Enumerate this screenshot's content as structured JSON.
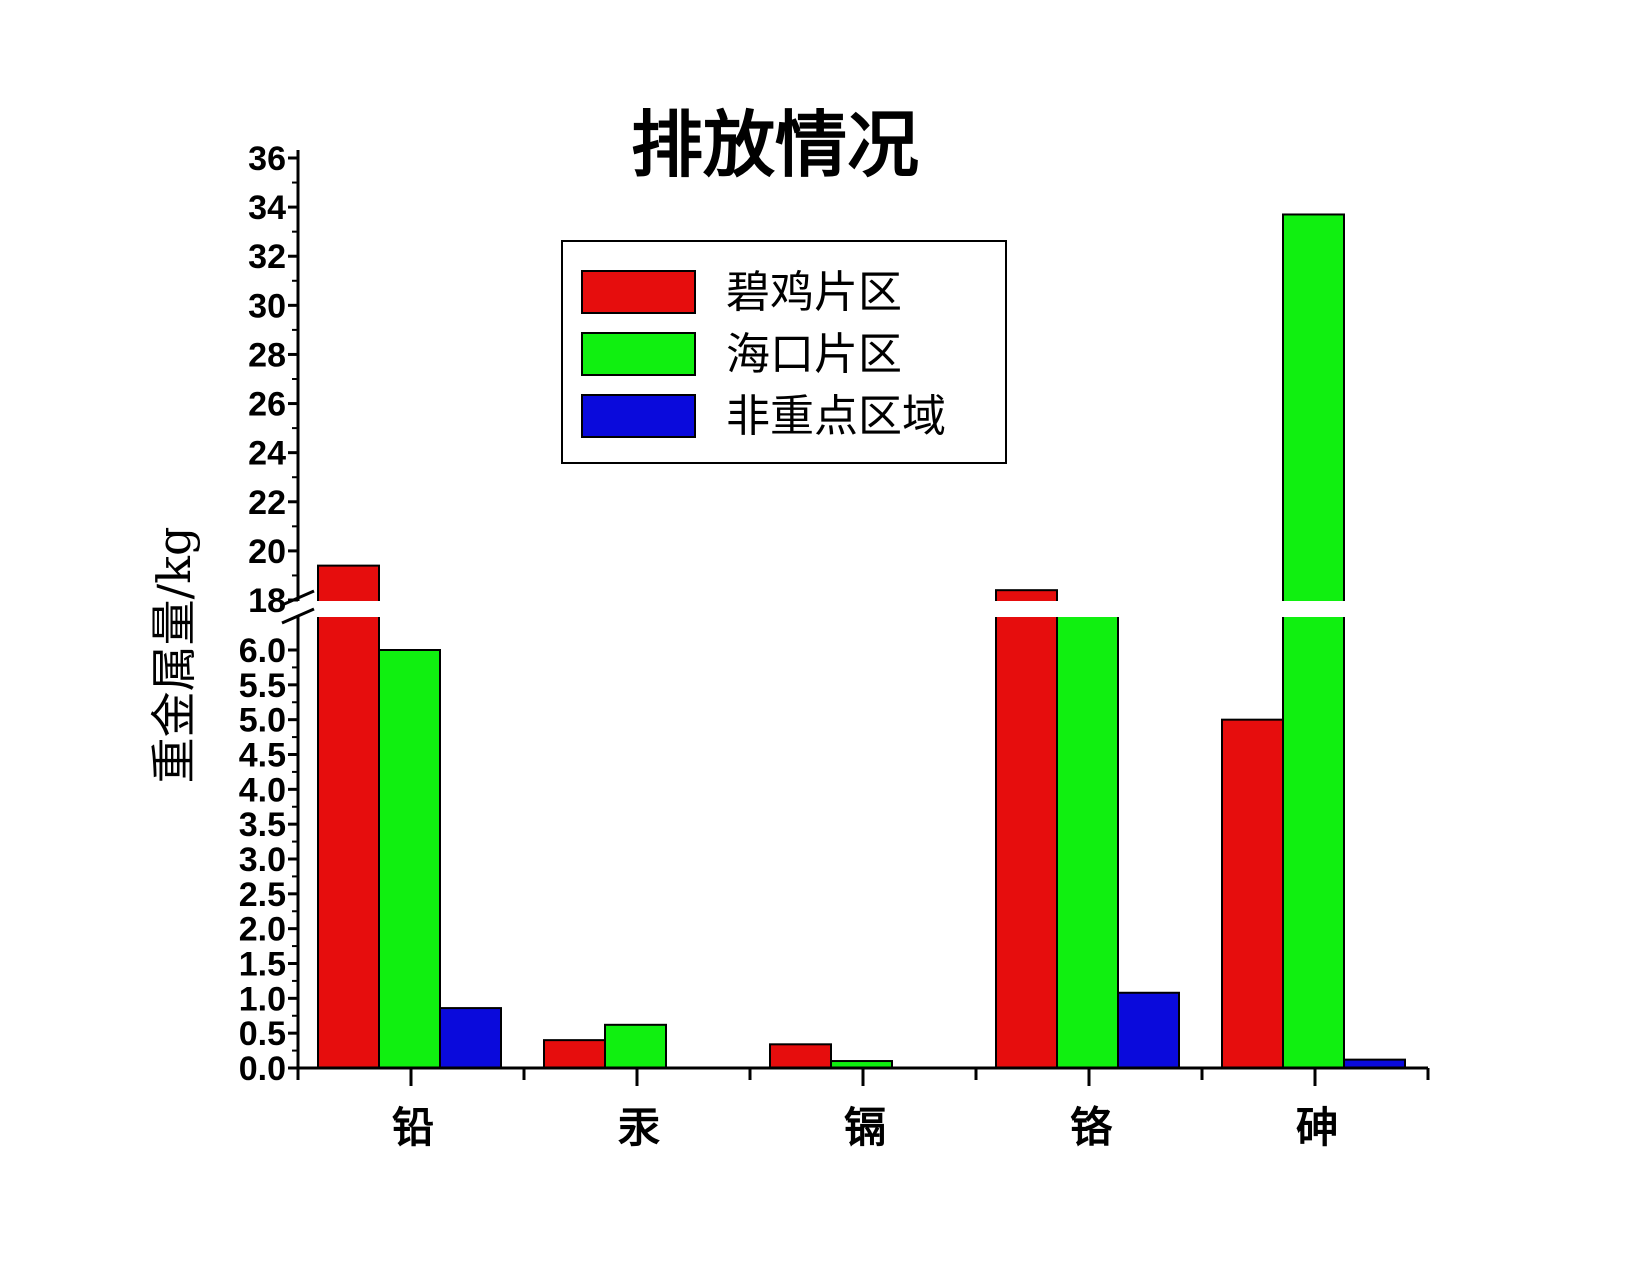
{
  "chart_data": {
    "type": "bar",
    "title": "排放情况",
    "ylabel": "重金属量/kg",
    "xlabel": "",
    "categories": [
      "铅",
      "汞",
      "镉",
      "铬",
      "砷"
    ],
    "series": [
      {
        "name": "碧鸡片区",
        "color": "#e60d0d",
        "values": [
          19.4,
          0.4,
          0.34,
          18.4,
          5.0
        ]
      },
      {
        "name": "海口片区",
        "color": "#10f010",
        "values": [
          6.0,
          0.62,
          0.1,
          6.17,
          33.7
        ]
      },
      {
        "name": "非重点区域",
        "color": "#0a0adc",
        "values": [
          0.86,
          0.0,
          0.0,
          1.08,
          0.12
        ]
      }
    ],
    "y_axis_break": {
      "lower_range": [
        0,
        6.0
      ],
      "upper_range": [
        18,
        36
      ]
    },
    "lower_ticks": [
      "0.0",
      "0.5",
      "1.0",
      "1.5",
      "2.0",
      "2.5",
      "3.0",
      "3.5",
      "4.0",
      "4.5",
      "5.0",
      "5.5",
      "6.0"
    ],
    "upper_ticks": [
      "18",
      "20",
      "22",
      "24",
      "26",
      "28",
      "30",
      "32",
      "34",
      "36"
    ],
    "legend_position": "top-center",
    "grid": false
  }
}
